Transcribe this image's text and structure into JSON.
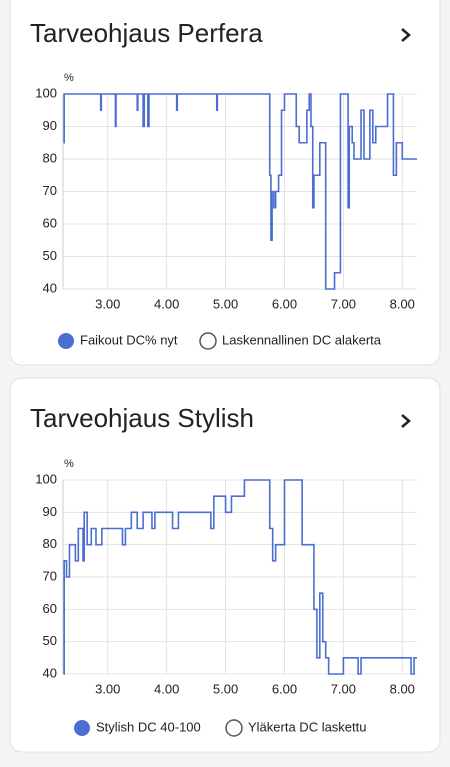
{
  "chart_data": [
    {
      "type": "line",
      "title": "Tarveohjaus Perfera",
      "y_label": "%",
      "xlim": [
        2.24,
        8.25
      ],
      "xticks": [
        {
          "value": 3,
          "label": "3.00"
        },
        {
          "value": 4,
          "label": "4.00"
        },
        {
          "value": 5,
          "label": "5.00"
        },
        {
          "value": 6,
          "label": "6.00"
        },
        {
          "value": 7,
          "label": "7.00"
        },
        {
          "value": 8,
          "label": "8.00"
        }
      ],
      "ylim": [
        40,
        100
      ],
      "yticks": [
        40,
        50,
        60,
        70,
        80,
        90,
        100
      ],
      "grid": true,
      "step": true,
      "series": [
        {
          "name": "Faikout DC% nyt",
          "color": "#4a6fd1",
          "x": [
            2.25,
            2.26,
            2.88,
            2.89,
            3.13,
            3.14,
            3.5,
            3.51,
            3.6,
            3.62,
            3.68,
            3.7,
            4.17,
            4.18,
            4.85,
            4.86,
            5.75,
            5.77,
            5.79,
            5.82,
            5.85,
            5.9,
            5.95,
            6.0,
            6.2,
            6.25,
            6.38,
            6.42,
            6.45,
            6.48,
            6.5,
            6.6,
            6.7,
            6.85,
            6.95,
            7.08,
            7.1,
            7.15,
            7.18,
            7.3,
            7.35,
            7.45,
            7.5,
            7.55,
            7.75,
            7.85,
            7.9,
            8.0,
            8.25
          ],
          "values": [
            85,
            100,
            95,
            100,
            90,
            100,
            95,
            100,
            90,
            100,
            90,
            100,
            95,
            100,
            95,
            100,
            75,
            55,
            70,
            65,
            70,
            75,
            95,
            100,
            90,
            85,
            95,
            100,
            90,
            65,
            75,
            85,
            40,
            45,
            100,
            65,
            90,
            85,
            80,
            95,
            80,
            95,
            85,
            90,
            100,
            75,
            85,
            80,
            80
          ]
        },
        {
          "name": "Laskennallinen DC alakerta"
        }
      ]
    },
    {
      "type": "line",
      "title": "Tarveohjaus Stylish",
      "y_label": "%",
      "xlim": [
        2.24,
        8.25
      ],
      "xticks": [
        {
          "value": 3,
          "label": "3.00"
        },
        {
          "value": 4,
          "label": "4.00"
        },
        {
          "value": 5,
          "label": "5.00"
        },
        {
          "value": 6,
          "label": "6.00"
        },
        {
          "value": 7,
          "label": "7.00"
        },
        {
          "value": 8,
          "label": "8.00"
        }
      ],
      "ylim": [
        40,
        100
      ],
      "yticks": [
        40,
        50,
        60,
        70,
        80,
        90,
        100
      ],
      "grid": true,
      "step": true,
      "series": [
        {
          "name": "Stylish DC 40-100",
          "color": "#4a6fd1",
          "x": [
            2.25,
            2.26,
            2.3,
            2.35,
            2.45,
            2.5,
            2.58,
            2.6,
            2.65,
            2.72,
            2.8,
            2.9,
            3.25,
            3.3,
            3.4,
            3.5,
            3.6,
            3.75,
            3.8,
            4.1,
            4.2,
            4.75,
            4.8,
            5.0,
            5.1,
            5.32,
            5.75,
            5.8,
            5.85,
            6.0,
            6.3,
            6.5,
            6.55,
            6.6,
            6.65,
            6.7,
            6.75,
            7.0,
            7.25,
            7.3,
            8.15,
            8.2,
            8.25
          ],
          "values": [
            40,
            75,
            70,
            80,
            75,
            85,
            75,
            90,
            80,
            85,
            80,
            85,
            80,
            85,
            90,
            85,
            90,
            85,
            90,
            85,
            90,
            85,
            95,
            90,
            95,
            100,
            85,
            75,
            80,
            100,
            80,
            60,
            45,
            65,
            50,
            45,
            40,
            45,
            40,
            45,
            40,
            45,
            45
          ]
        },
        {
          "name": "Yläkerta DC laskettu"
        }
      ]
    }
  ]
}
